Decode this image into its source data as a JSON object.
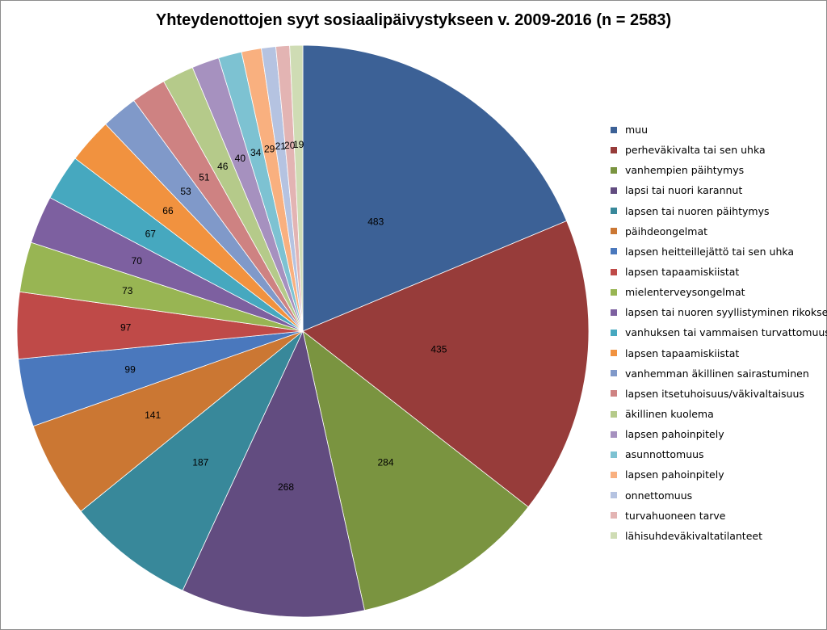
{
  "chart_data": {
    "type": "pie",
    "title": "Yhteydenottojen syyt sosiaalipäivystykseen v. 2009-2016 (n = 2583)",
    "legend_position": "right",
    "slices": [
      {
        "label": "muu",
        "value": 483,
        "color": "#3c6196"
      },
      {
        "label": "perheväkivalta tai sen uhka",
        "value": 435,
        "color": "#973c3a"
      },
      {
        "label": "vanhempien päihtymys",
        "value": 284,
        "color": "#7a9440"
      },
      {
        "label": "lapsi tai nuori karannut",
        "value": 268,
        "color": "#624c80"
      },
      {
        "label": "lapsen tai nuoren päihtymys",
        "value": 187,
        "color": "#38889a"
      },
      {
        "label": "päihdeongelmat",
        "value": 141,
        "color": "#cb7733"
      },
      {
        "label": "lapsen heitteillejättö tai sen uhka",
        "value": 99,
        "color": "#4a78bd"
      },
      {
        "label": "lapsen tapaamiskiistat",
        "value": 97,
        "color": "#bf4a48"
      },
      {
        "label": "mielenterveysongelmat",
        "value": 73,
        "color": "#98b553"
      },
      {
        "label": "lapsen tai nuoren syyllistyminen rikokseen",
        "value": 70,
        "color": "#7d60a0"
      },
      {
        "label": "vanhuksen tai vammaisen turvattomuus",
        "value": 67,
        "color": "#46a8bf"
      },
      {
        "label": "lapsen tapaamiskiistat",
        "value": 66,
        "color": "#f1923f"
      },
      {
        "label": "vanhemman äkillinen sairastuminen",
        "value": 53,
        "color": "#8099c9"
      },
      {
        "label": "lapsen itsetuhoisuus/väkivaltaisuus",
        "value": 51,
        "color": "#ce8282"
      },
      {
        "label": "äkillinen kuolema",
        "value": 46,
        "color": "#b5ca8a"
      },
      {
        "label": "lapsen pahoinpitely",
        "value": 40,
        "color": "#a691bf"
      },
      {
        "label": "asunnottomuus",
        "value": 34,
        "color": "#7dc2d2"
      },
      {
        "label": "lapsen pahoinpitely",
        "value": 29,
        "color": "#f9b07f"
      },
      {
        "label": "onnettomuus",
        "value": 21,
        "color": "#b5c3e1"
      },
      {
        "label": "turvahuoneen tarve",
        "value": 20,
        "color": "#e3b4b3"
      },
      {
        "label": "lähisuhdeväkivaltatilanteet",
        "value": 19,
        "color": "#cfdcb4"
      }
    ]
  }
}
